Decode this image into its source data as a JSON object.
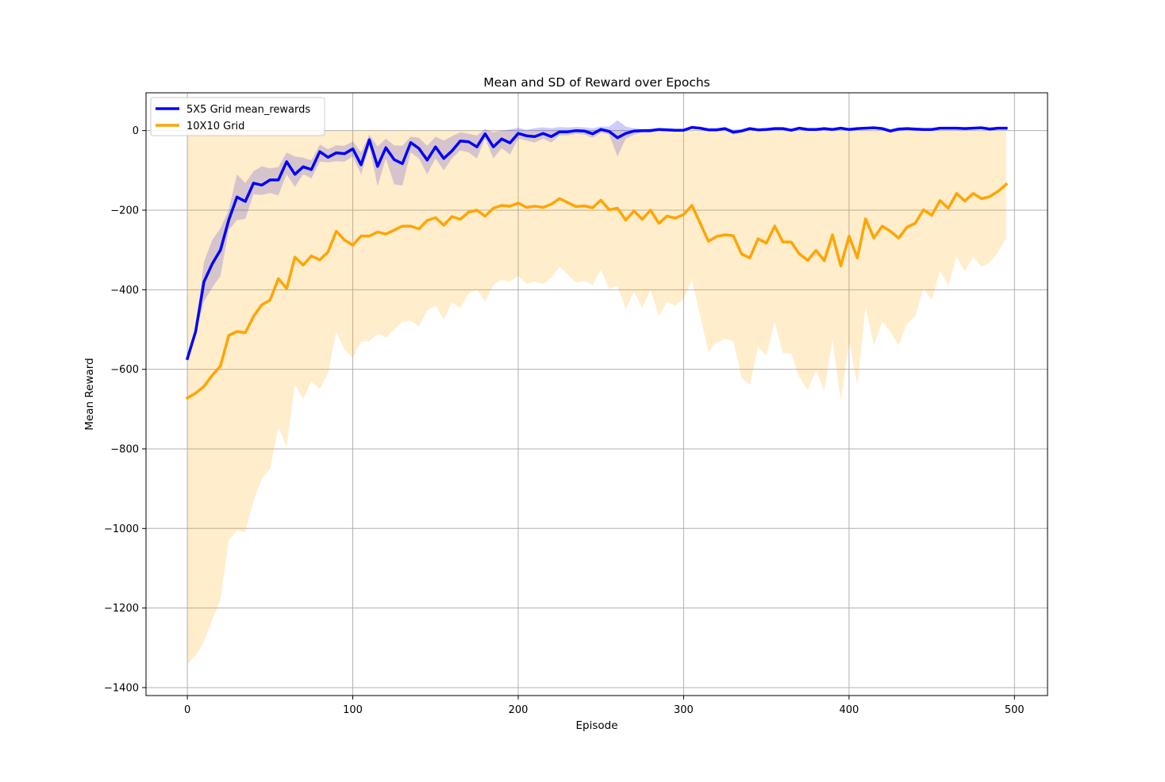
{
  "chart_data": {
    "type": "line",
    "title": "Mean and SD of Reward over Epochs",
    "xlabel": "Episode",
    "ylabel": "Mean Reward",
    "xlim": [
      -25,
      520
    ],
    "ylim": [
      -1420,
      95
    ],
    "xticks": [
      0,
      100,
      200,
      300,
      400,
      500
    ],
    "yticks": [
      0,
      -200,
      -400,
      -600,
      -800,
      -1000,
      -1200,
      -1400
    ],
    "grid": true,
    "legend_position": "upper left",
    "series": [
      {
        "name": "5X5 Grid mean_rewards",
        "color": "#0000ff",
        "band_color": "#0000ff",
        "band_opacity": 0.2,
        "x": [
          0,
          5,
          10,
          15,
          20,
          25,
          30,
          35,
          40,
          45,
          50,
          55,
          60,
          65,
          70,
          75,
          80,
          85,
          90,
          95,
          100,
          105,
          110,
          115,
          120,
          125,
          130,
          135,
          140,
          145,
          150,
          155,
          160,
          165,
          170,
          175,
          180,
          185,
          190,
          195,
          200,
          205,
          210,
          215,
          220,
          225,
          230,
          235,
          240,
          245,
          250,
          255,
          260,
          265,
          270,
          275,
          280,
          285,
          290,
          295,
          300,
          305,
          310,
          315,
          320,
          325,
          330,
          335,
          340,
          345,
          350,
          355,
          360,
          365,
          370,
          375,
          380,
          385,
          390,
          395,
          400,
          405,
          410,
          415,
          420,
          425,
          430,
          435,
          440,
          445,
          450,
          455,
          460,
          465,
          470,
          475,
          480,
          485,
          490,
          495
        ],
        "mean": [
          -573,
          -505,
          -380,
          -335,
          -300,
          -225,
          -167,
          -178,
          -132,
          -137,
          -124,
          -124,
          -78,
          -110,
          -91,
          -98,
          -53,
          -67,
          -56,
          -58,
          -46,
          -86,
          -23,
          -90,
          -43,
          -73,
          -83,
          -30,
          -45,
          -74,
          -41,
          -70,
          -51,
          -26,
          -28,
          -41,
          -8,
          -41,
          -21,
          -31,
          -7,
          -13,
          -15,
          -7,
          -15,
          -3,
          -3,
          0,
          -1,
          -8,
          3,
          -2,
          -18,
          -7,
          -1,
          0,
          0,
          3,
          2,
          1,
          1,
          8,
          6,
          2,
          2,
          5,
          -4,
          -1,
          5,
          2,
          3,
          5,
          5,
          1,
          6,
          3,
          3,
          5,
          3,
          6,
          3,
          5,
          6,
          7,
          5,
          -1,
          4,
          5,
          4,
          3,
          3,
          6,
          6,
          6,
          5,
          6,
          7,
          4,
          6,
          6
        ],
        "upper": [
          -573,
          -500,
          -330,
          -275,
          -245,
          -200,
          -110,
          -132,
          -102,
          -90,
          -95,
          -92,
          -55,
          -65,
          -68,
          -75,
          -35,
          -47,
          -37,
          -38,
          -27,
          -55,
          -10,
          -40,
          -20,
          -37,
          -38,
          -15,
          -18,
          -38,
          -15,
          -25,
          -14,
          -4,
          -8,
          -12,
          4,
          -4,
          0,
          3,
          7,
          2,
          6,
          8,
          6,
          9,
          8,
          9,
          8,
          6,
          10,
          10,
          26,
          10,
          6,
          4,
          5,
          6,
          6,
          4,
          4,
          10,
          8,
          6,
          6,
          8,
          3,
          4,
          8,
          5,
          6,
          7,
          8,
          5,
          8,
          6,
          6,
          8,
          6,
          9,
          6,
          8,
          8,
          10,
          8,
          4,
          8,
          8,
          7,
          6,
          6,
          9,
          8,
          8,
          8,
          8,
          10,
          8,
          9,
          8
        ],
        "lower": [
          -573,
          -510,
          -430,
          -395,
          -365,
          -250,
          -225,
          -222,
          -160,
          -162,
          -157,
          -163,
          -110,
          -142,
          -110,
          -120,
          -78,
          -80,
          -77,
          -78,
          -65,
          -110,
          -40,
          -140,
          -70,
          -135,
          -138,
          -55,
          -70,
          -110,
          -70,
          -100,
          -70,
          -50,
          -55,
          -70,
          -20,
          -70,
          -44,
          -60,
          -20,
          -25,
          -30,
          -20,
          -30,
          -12,
          -12,
          -8,
          -10,
          -18,
          -5,
          -10,
          -65,
          -20,
          -10,
          -5,
          -5,
          0,
          -1,
          -2,
          -2,
          5,
          3,
          -1,
          -2,
          1,
          -10,
          -5,
          2,
          -1,
          0,
          2,
          2,
          -3,
          3,
          0,
          0,
          2,
          0,
          3,
          0,
          2,
          4,
          4,
          2,
          -6,
          0,
          2,
          1,
          0,
          0,
          3,
          3,
          4,
          2,
          3,
          4,
          1,
          3,
          3
        ]
      },
      {
        "name": "10X10 Grid",
        "color": "#ffa500",
        "band_color": "#ffa500",
        "band_opacity": 0.2,
        "x": [
          0,
          5,
          10,
          15,
          20,
          25,
          30,
          35,
          40,
          45,
          50,
          55,
          60,
          65,
          70,
          75,
          80,
          85,
          90,
          95,
          100,
          105,
          110,
          115,
          120,
          125,
          130,
          135,
          140,
          145,
          150,
          155,
          160,
          165,
          170,
          175,
          180,
          185,
          190,
          195,
          200,
          205,
          210,
          215,
          220,
          225,
          230,
          235,
          240,
          245,
          250,
          255,
          260,
          265,
          270,
          275,
          280,
          285,
          290,
          295,
          300,
          305,
          310,
          315,
          320,
          325,
          330,
          335,
          340,
          345,
          350,
          355,
          360,
          365,
          370,
          375,
          380,
          385,
          390,
          395,
          400,
          405,
          410,
          415,
          420,
          425,
          430,
          435,
          440,
          445,
          450,
          455,
          460,
          465,
          470,
          475,
          480,
          485,
          490,
          495
        ],
        "mean": [
          -672,
          -660,
          -643,
          -615,
          -592,
          -515,
          -505,
          -508,
          -467,
          -438,
          -426,
          -372,
          -397,
          -318,
          -338,
          -315,
          -325,
          -305,
          -253,
          -275,
          -288,
          -265,
          -265,
          -255,
          -260,
          -250,
          -240,
          -240,
          -247,
          -226,
          -219,
          -238,
          -216,
          -223,
          -205,
          -200,
          -215,
          -195,
          -188,
          -190,
          -182,
          -193,
          -190,
          -193,
          -185,
          -171,
          -181,
          -191,
          -189,
          -194,
          -175,
          -199,
          -195,
          -225,
          -202,
          -223,
          -200,
          -233,
          -215,
          -220,
          -211,
          -188,
          -233,
          -278,
          -266,
          -262,
          -264,
          -310,
          -320,
          -272,
          -283,
          -240,
          -280,
          -280,
          -310,
          -326,
          -301,
          -327,
          -262,
          -340,
          -265,
          -320,
          -222,
          -270,
          -240,
          -253,
          -270,
          -243,
          -233,
          -199,
          -213,
          -176,
          -195,
          -158,
          -177,
          -158,
          -171,
          -166,
          -153,
          -135
        ],
        "upper": [
          0,
          0,
          0,
          0,
          0,
          0,
          0,
          0,
          0,
          0,
          0,
          0,
          0,
          0,
          0,
          0,
          0,
          0,
          0,
          0,
          0,
          0,
          0,
          0,
          0,
          0,
          0,
          0,
          0,
          0,
          0,
          0,
          0,
          0,
          0,
          0,
          0,
          0,
          0,
          0,
          0,
          0,
          0,
          0,
          0,
          0,
          0,
          0,
          0,
          0,
          0,
          0,
          0,
          0,
          0,
          0,
          0,
          0,
          0,
          0,
          0,
          0,
          0,
          0,
          0,
          0,
          0,
          0,
          0,
          0,
          0,
          0,
          0,
          0,
          0,
          0,
          0,
          0,
          0,
          0,
          0,
          0,
          0,
          0,
          0,
          0,
          0,
          0,
          0,
          0,
          0,
          0,
          0,
          0,
          0,
          0,
          0,
          0,
          0,
          0
        ],
        "lower": [
          -1340,
          -1320,
          -1285,
          -1230,
          -1180,
          -1030,
          -1005,
          -1010,
          -930,
          -875,
          -850,
          -745,
          -795,
          -638,
          -675,
          -630,
          -650,
          -610,
          -505,
          -550,
          -570,
          -530,
          -530,
          -510,
          -520,
          -500,
          -480,
          -478,
          -492,
          -452,
          -440,
          -475,
          -432,
          -446,
          -410,
          -400,
          -430,
          -388,
          -375,
          -380,
          -365,
          -385,
          -380,
          -385,
          -370,
          -342,
          -362,
          -382,
          -378,
          -388,
          -350,
          -398,
          -390,
          -450,
          -405,
          -445,
          -400,
          -466,
          -430,
          -440,
          -422,
          -376,
          -465,
          -556,
          -532,
          -524,
          -528,
          -620,
          -640,
          -544,
          -566,
          -480,
          -560,
          -560,
          -620,
          -652,
          -602,
          -654,
          -524,
          -680,
          -530,
          -640,
          -444,
          -540,
          -480,
          -506,
          -540,
          -486,
          -466,
          -398,
          -426,
          -352,
          -390,
          -316,
          -354,
          -316,
          -342,
          -332,
          -306,
          -270
        ]
      }
    ]
  }
}
